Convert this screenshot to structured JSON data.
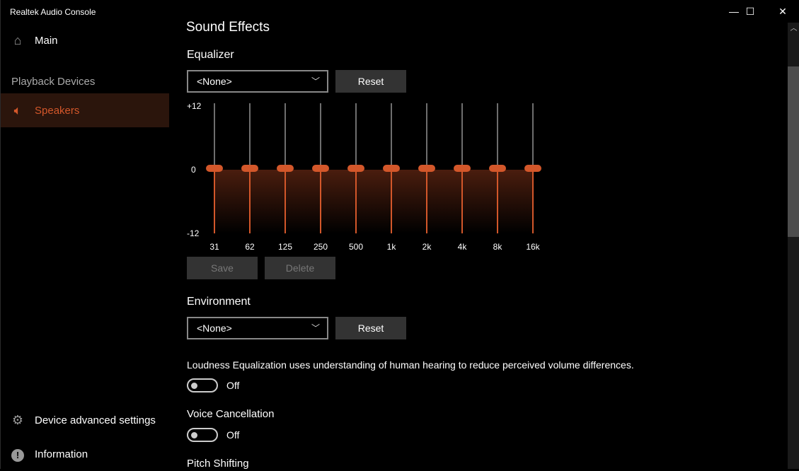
{
  "window": {
    "title": "Realtek Audio Console",
    "minimize": "—",
    "maximize": "☐",
    "close": "✕"
  },
  "sidebar": {
    "main": {
      "label": "Main",
      "icon": "home-icon"
    },
    "section": "Playback Devices",
    "speakers": {
      "label": "Speakers",
      "icon": "speaker-icon"
    },
    "advanced": {
      "label": "Device advanced settings",
      "icon": "gear-icon"
    },
    "info": {
      "label": "Information",
      "icon": "info-icon"
    }
  },
  "accent": "#d3572a",
  "main": {
    "title": "Sound Effects",
    "equalizer": {
      "heading": "Equalizer",
      "preset": "<None>",
      "reset": "Reset",
      "save": "Save",
      "delete": "Delete",
      "scale": {
        "max": "+12",
        "zero": "0",
        "min": "-12"
      },
      "bands": [
        {
          "label": "31",
          "value": 0
        },
        {
          "label": "62",
          "value": 0
        },
        {
          "label": "125",
          "value": 0
        },
        {
          "label": "250",
          "value": 0
        },
        {
          "label": "500",
          "value": 0
        },
        {
          "label": "1k",
          "value": 0
        },
        {
          "label": "2k",
          "value": 0
        },
        {
          "label": "4k",
          "value": 0
        },
        {
          "label": "8k",
          "value": 0
        },
        {
          "label": "16k",
          "value": 0
        }
      ]
    },
    "environment": {
      "heading": "Environment",
      "preset": "<None>",
      "reset": "Reset"
    },
    "loudness": {
      "description": "Loudness Equalization uses understanding of human hearing to reduce perceived volume differences.",
      "state": "Off"
    },
    "voice": {
      "heading": "Voice Cancellation",
      "state": "Off"
    },
    "pitch": {
      "heading": "Pitch Shifting"
    }
  }
}
